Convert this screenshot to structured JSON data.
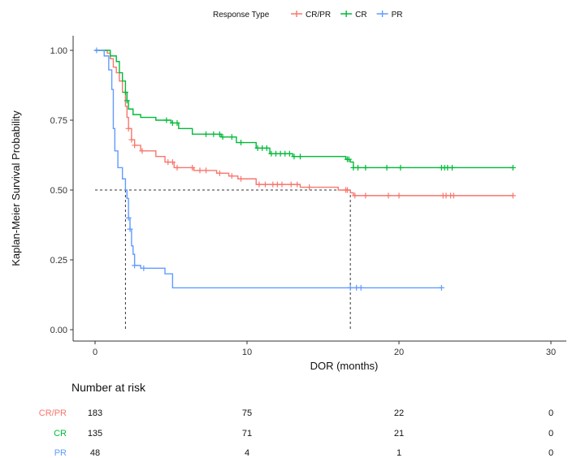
{
  "chart_data": {
    "type": "line",
    "subtype": "kaplan-meier step",
    "title": "",
    "xlabel": "DOR (months)",
    "ylabel": "Kaplan-Meier Survival Probability",
    "xlim": [
      0,
      30
    ],
    "ylim": [
      0,
      1
    ],
    "x_ticks": [
      0,
      10,
      20,
      30
    ],
    "y_ticks": [
      0.0,
      0.25,
      0.5,
      0.75,
      1.0
    ],
    "x_tick_labels": [
      "0",
      "10",
      "20",
      "30"
    ],
    "y_tick_labels": [
      "0.00",
      "0.25",
      "0.50",
      "0.75",
      "1.00"
    ],
    "grid": false,
    "legend": {
      "title": "Response Type",
      "position": "top",
      "entries": [
        "CR/PR",
        "CR",
        "PR"
      ]
    },
    "median_lines": [
      {
        "x": 2.0,
        "y": 0.5,
        "color": "#333333"
      },
      {
        "x": 16.8,
        "y": 0.5,
        "color": "#333333"
      }
    ],
    "series": [
      {
        "name": "CR/PR",
        "color": "#F8766D",
        "points": [
          [
            0,
            1.0
          ],
          [
            0.8,
            0.99
          ],
          [
            1.0,
            0.97
          ],
          [
            1.2,
            0.94
          ],
          [
            1.4,
            0.92
          ],
          [
            1.6,
            0.89
          ],
          [
            1.8,
            0.85
          ],
          [
            2.0,
            0.8
          ],
          [
            2.1,
            0.76
          ],
          [
            2.2,
            0.72
          ],
          [
            2.4,
            0.68
          ],
          [
            2.6,
            0.66
          ],
          [
            3.0,
            0.64
          ],
          [
            4.0,
            0.62
          ],
          [
            4.6,
            0.6
          ],
          [
            5.2,
            0.58
          ],
          [
            6.5,
            0.57
          ],
          [
            8.0,
            0.56
          ],
          [
            8.8,
            0.55
          ],
          [
            9.4,
            0.54
          ],
          [
            10.6,
            0.52
          ],
          [
            13.5,
            0.51
          ],
          [
            16.0,
            0.5
          ],
          [
            16.8,
            0.49
          ],
          [
            17.0,
            0.48
          ],
          [
            27.5,
            0.48
          ]
        ],
        "censor_x": [
          2.2,
          2.4,
          2.6,
          3.1,
          4.8,
          5.1,
          5.4,
          6.4,
          6.9,
          7.3,
          8.2,
          9.0,
          9.6,
          10.8,
          11.2,
          11.7,
          12.0,
          12.3,
          12.9,
          13.3,
          14.1,
          16.5,
          16.6,
          17.1,
          17.8,
          19.3,
          20.0,
          22.9,
          23.1,
          23.4,
          23.6,
          27.5
        ]
      },
      {
        "name": "CR",
        "color": "#00BA38",
        "points": [
          [
            0,
            1.0
          ],
          [
            1.0,
            0.98
          ],
          [
            1.4,
            0.96
          ],
          [
            1.6,
            0.92
          ],
          [
            1.8,
            0.89
          ],
          [
            2.0,
            0.85
          ],
          [
            2.1,
            0.82
          ],
          [
            2.2,
            0.79
          ],
          [
            2.5,
            0.77
          ],
          [
            3.0,
            0.76
          ],
          [
            4.0,
            0.75
          ],
          [
            5.0,
            0.74
          ],
          [
            5.5,
            0.72
          ],
          [
            6.4,
            0.7
          ],
          [
            8.3,
            0.69
          ],
          [
            9.3,
            0.67
          ],
          [
            10.6,
            0.65
          ],
          [
            11.5,
            0.63
          ],
          [
            13.0,
            0.62
          ],
          [
            16.5,
            0.61
          ],
          [
            16.8,
            0.6
          ],
          [
            17.0,
            0.58
          ],
          [
            27.5,
            0.58
          ]
        ],
        "censor_x": [
          2.0,
          2.1,
          4.7,
          5.1,
          5.4,
          7.3,
          7.8,
          8.2,
          8.4,
          9.0,
          9.6,
          10.7,
          11.0,
          11.3,
          11.6,
          11.9,
          12.2,
          12.5,
          12.8,
          13.1,
          13.5,
          16.6,
          16.7,
          17.0,
          17.3,
          17.8,
          19.2,
          20.1,
          22.8,
          23.0,
          23.2,
          23.5,
          27.5
        ]
      },
      {
        "name": "PR",
        "color": "#619CFF",
        "points": [
          [
            0,
            1.0
          ],
          [
            0.6,
            0.98
          ],
          [
            0.9,
            0.93
          ],
          [
            1.1,
            0.86
          ],
          [
            1.2,
            0.72
          ],
          [
            1.3,
            0.64
          ],
          [
            1.5,
            0.58
          ],
          [
            1.8,
            0.54
          ],
          [
            2.0,
            0.5
          ],
          [
            2.1,
            0.47
          ],
          [
            2.2,
            0.4
          ],
          [
            2.3,
            0.36
          ],
          [
            2.4,
            0.3
          ],
          [
            2.5,
            0.27
          ],
          [
            2.6,
            0.23
          ],
          [
            3.0,
            0.22
          ],
          [
            4.6,
            0.2
          ],
          [
            5.1,
            0.15
          ],
          [
            22.8,
            0.15
          ]
        ],
        "censor_x": [
          0.1,
          2.2,
          2.3,
          2.6,
          3.2,
          16.8,
          17.2,
          17.5,
          22.8
        ]
      }
    ]
  },
  "risk_table": {
    "title": "Number at risk",
    "times": [
      0,
      10,
      20,
      30
    ],
    "rows": [
      {
        "label": "CR/PR",
        "color": "#F8766D",
        "values": [
          "183",
          "75",
          "22",
          "0"
        ]
      },
      {
        "label": "CR",
        "color": "#00BA38",
        "values": [
          "135",
          "71",
          "21",
          "0"
        ]
      },
      {
        "label": "PR",
        "color": "#619CFF",
        "values": [
          "48",
          "4",
          "1",
          "0"
        ]
      }
    ]
  }
}
